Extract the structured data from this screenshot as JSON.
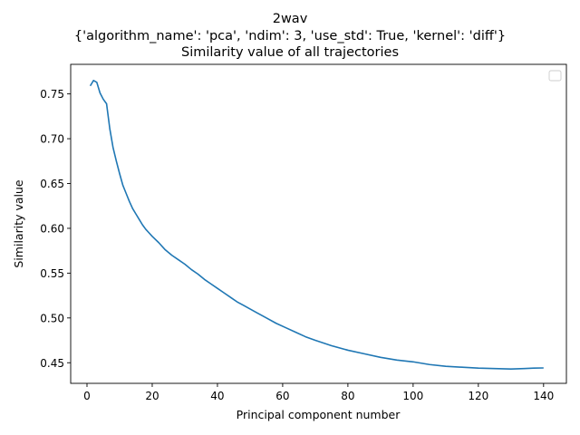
{
  "chart_data": {
    "type": "line",
    "title_lines": [
      "2wav",
      "{'algorithm_name': 'pca', 'ndim': 3, 'use_std': True, 'kernel': 'diff'}",
      "Similarity value of all trajectories"
    ],
    "xlabel": "Principal component number",
    "ylabel": "Similarity value",
    "xlim": [
      -5,
      147
    ],
    "ylim": [
      0.427,
      0.783
    ],
    "xticks": [
      0,
      20,
      40,
      60,
      80,
      100,
      120,
      140
    ],
    "xtick_labels": [
      "0",
      "20",
      "40",
      "60",
      "80",
      "100",
      "120",
      "140"
    ],
    "yticks": [
      0.45,
      0.5,
      0.55,
      0.6,
      0.65,
      0.7,
      0.75
    ],
    "ytick_labels": [
      "0.45",
      "0.50",
      "0.55",
      "0.60",
      "0.65",
      "0.70",
      "0.75"
    ],
    "grid": false,
    "legend": {
      "placement": "top-right",
      "entries": []
    },
    "series": [
      {
        "color": "#1f77b4",
        "x": [
          1,
          2,
          3,
          4,
          5,
          6,
          7,
          8,
          9,
          10,
          11,
          12,
          13,
          14,
          15,
          16,
          17,
          18,
          19,
          20,
          22,
          24,
          26,
          28,
          30,
          32,
          34,
          36,
          38,
          40,
          42,
          44,
          46,
          48,
          50,
          52,
          55,
          58,
          61,
          64,
          67,
          70,
          75,
          80,
          85,
          90,
          95,
          100,
          105,
          110,
          115,
          120,
          125,
          130,
          134,
          137,
          140
        ],
        "y": [
          0.759,
          0.765,
          0.763,
          0.751,
          0.744,
          0.739,
          0.711,
          0.69,
          0.675,
          0.661,
          0.648,
          0.639,
          0.63,
          0.622,
          0.616,
          0.61,
          0.604,
          0.599,
          0.595,
          0.591,
          0.584,
          0.576,
          0.57,
          0.565,
          0.56,
          0.554,
          0.549,
          0.543,
          0.538,
          0.533,
          0.528,
          0.523,
          0.518,
          0.514,
          0.51,
          0.506,
          0.5,
          0.494,
          0.489,
          0.484,
          0.479,
          0.475,
          0.469,
          0.464,
          0.46,
          0.456,
          0.453,
          0.451,
          0.448,
          0.446,
          0.445,
          0.444,
          0.4435,
          0.443,
          0.4435,
          0.444,
          0.4442
        ]
      }
    ]
  }
}
